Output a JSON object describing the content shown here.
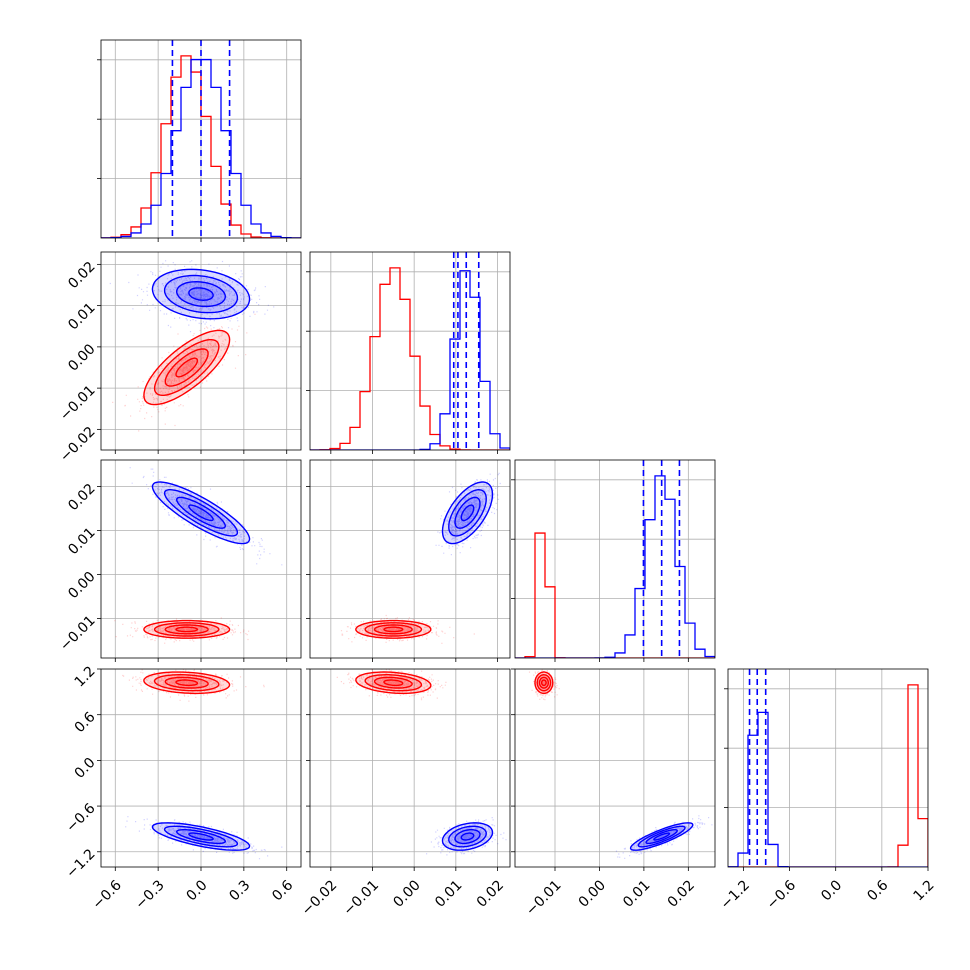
{
  "chart_data": {
    "type": "corner",
    "grid": true,
    "colors": {
      "series_a": "#ff0000",
      "series_b": "#0000ff"
    },
    "parameters": [
      {
        "range": [
          -0.7,
          0.7
        ],
        "ticks": [
          -0.6,
          -0.3,
          0.0,
          0.3,
          0.6
        ],
        "tick_labels": [
          "−0.6",
          "−0.3",
          "0.0",
          "0.3",
          "0.6"
        ]
      },
      {
        "range": [
          -0.025,
          0.023
        ],
        "ticks": [
          -0.02,
          -0.01,
          0.0,
          0.01,
          0.02
        ],
        "tick_labels": [
          "−0.02",
          "−0.01",
          "0.00",
          "0.01",
          "0.02"
        ]
      },
      {
        "range": [
          -0.019,
          0.026
        ],
        "ticks": [
          -0.01,
          0.0,
          0.01,
          0.02
        ],
        "tick_labels": [
          "−0.01",
          "0.00",
          "0.01",
          "0.02"
        ]
      },
      {
        "range": [
          -1.4,
          1.2
        ],
        "ticks": [
          -1.2,
          -0.6,
          0.0,
          0.6,
          1.2
        ],
        "tick_labels": [
          "−1.2",
          "−0.6",
          "0.0",
          "0.6",
          "1.2"
        ]
      }
    ],
    "series": [
      {
        "color": "#ff0000",
        "means": [
          -0.1,
          -0.005,
          -0.0125,
          1.02
        ],
        "sds": [
          0.15,
          0.0045,
          0.001,
          0.07
        ],
        "correlations": [
          [
            0,
            1,
            0.75
          ],
          [
            0,
            3,
            -0.2
          ],
          [
            1,
            3,
            -0.25
          ]
        ],
        "quantile_lines": []
      },
      {
        "color": "#0000ff",
        "means": [
          0.0,
          0.0128,
          0.014,
          -1.0
        ],
        "sds": [
          0.17,
          0.003,
          0.0035,
          0.09
        ],
        "correlations": [
          [
            0,
            1,
            -0.2
          ],
          [
            0,
            2,
            -0.85
          ],
          [
            0,
            3,
            -0.7
          ],
          [
            1,
            2,
            0.6
          ],
          [
            1,
            3,
            0.3
          ],
          [
            2,
            3,
            0.85
          ]
        ],
        "quantile_lines": [
          [
            -0.2,
            0.0,
            0.2
          ],
          [
            0.0095,
            0.0105,
            0.0125,
            0.0155
          ],
          [
            0.0099,
            0.014,
            0.018
          ],
          [
            -1.12,
            -1.02,
            -0.91
          ]
        ]
      }
    ]
  }
}
